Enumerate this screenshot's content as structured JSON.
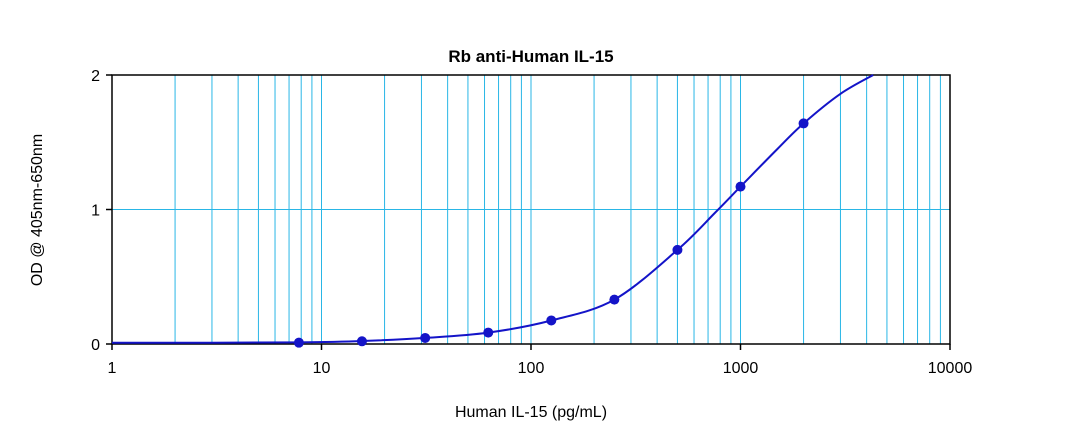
{
  "chart_data": {
    "type": "scatter",
    "title": "Rb anti-Human IL-15",
    "xlabel": "Human IL-15 (pg/mL)",
    "ylabel": "OD @ 405nm-650nm",
    "x_scale": "log",
    "xlim": [
      1,
      10000
    ],
    "ylim": [
      0,
      2
    ],
    "x_ticks": [
      1,
      10,
      100,
      1000,
      10000
    ],
    "x_tick_labels": [
      "1",
      "10",
      "100",
      "1000",
      "10000"
    ],
    "y_ticks": [
      0,
      1,
      2
    ],
    "y_tick_labels": [
      "0",
      "1",
      "2"
    ],
    "grid": true,
    "series": [
      {
        "x": [
          7.8,
          15.6,
          31.25,
          62.5,
          125,
          250,
          500,
          1000,
          2000
        ],
        "y": [
          0.01,
          0.02,
          0.045,
          0.085,
          0.175,
          0.33,
          0.7,
          1.17,
          1.64
        ]
      }
    ],
    "fit_curve": {
      "x": [
        1,
        3,
        7.8,
        15.6,
        31.25,
        62.5,
        125,
        250,
        500,
        750,
        1000,
        1500,
        2000,
        3000,
        4300
      ],
      "y": [
        0.01,
        0.01,
        0.012,
        0.022,
        0.045,
        0.085,
        0.175,
        0.33,
        0.7,
        0.97,
        1.17,
        1.45,
        1.64,
        1.86,
        2.0
      ]
    },
    "colors": {
      "series": "#1414c8",
      "grid": "#29b6e6",
      "axis": "#000000"
    }
  }
}
